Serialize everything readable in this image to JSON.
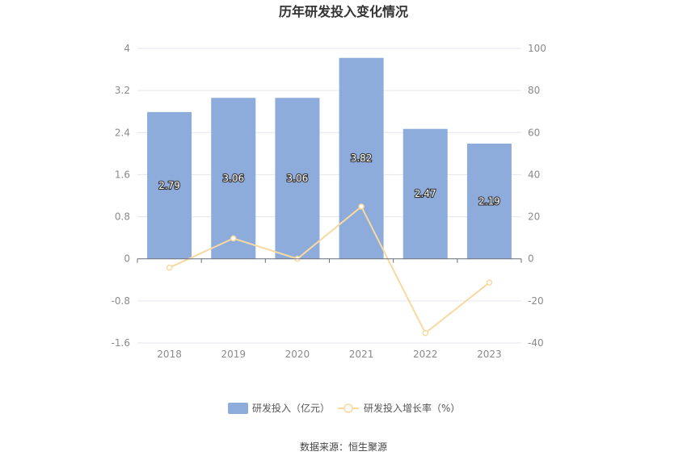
{
  "chart_data": {
    "type": "bar",
    "title": "历年研发投入变化情况",
    "categories": [
      "2018",
      "2019",
      "2020",
      "2021",
      "2022",
      "2023"
    ],
    "series": [
      {
        "name": "研发投入（亿元）",
        "type": "bar",
        "axis": "left",
        "values": [
          2.79,
          3.06,
          3.06,
          3.82,
          2.47,
          2.19
        ],
        "color": "#8eacdb",
        "labels": [
          "2.79",
          "3.06",
          "3.06",
          "3.82",
          "2.47",
          "2.19"
        ]
      },
      {
        "name": "研发投入增长率（%）",
        "type": "line",
        "axis": "right",
        "values": [
          -4.2,
          9.7,
          0.0,
          24.8,
          -35.3,
          -11.3
        ],
        "color": "#f8d9a0"
      }
    ],
    "y_left": {
      "min": -1.6,
      "max": 4,
      "ticks": [
        "-1.6",
        "-0.8",
        "0",
        "0.8",
        "1.6",
        "2.4",
        "3.2",
        "4"
      ]
    },
    "y_right": {
      "min": -40,
      "max": 100,
      "ticks": [
        "-40",
        "-20",
        "0",
        "20",
        "40",
        "60",
        "80",
        "100"
      ]
    },
    "grid": true,
    "legend_position": "bottom",
    "source": "数据来源：恒生聚源"
  }
}
